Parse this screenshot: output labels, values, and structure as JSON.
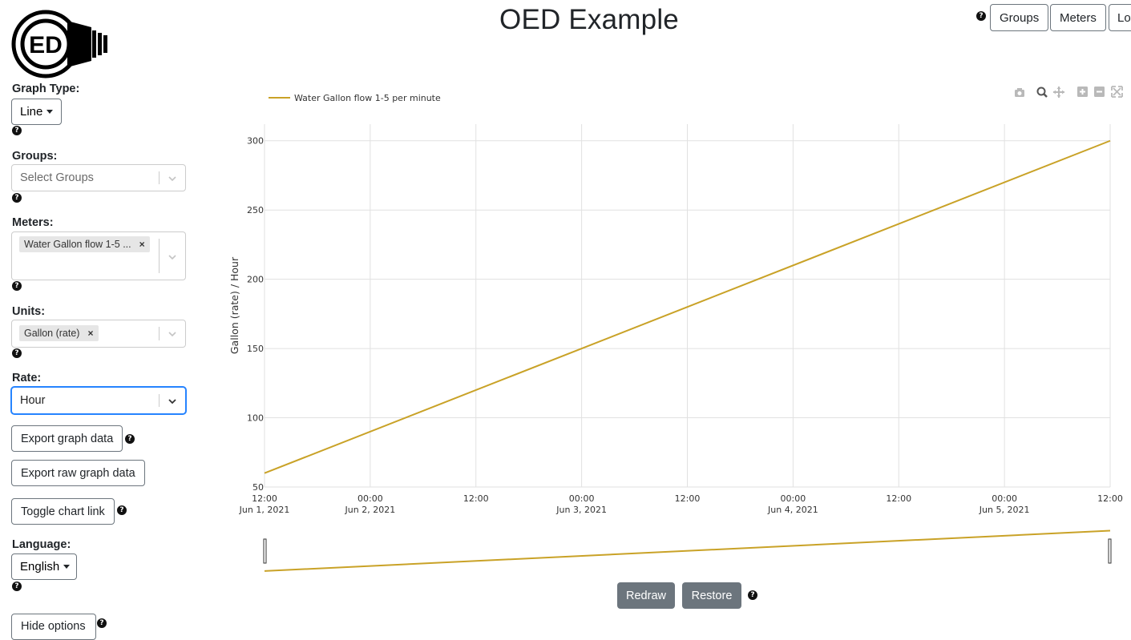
{
  "header": {
    "title": "OED Example",
    "logo_text": "ED",
    "nav": {
      "groups_label": "Groups",
      "meters_label": "Meters",
      "login_label": "Lo"
    }
  },
  "sidebar": {
    "graph_type": {
      "label": "Graph Type:",
      "value": "Line"
    },
    "groups": {
      "label": "Groups:",
      "placeholder": "Select Groups"
    },
    "meters": {
      "label": "Meters:",
      "selected": [
        "Water Gallon flow 1-5 ..."
      ]
    },
    "units": {
      "label": "Units:",
      "selected": [
        "Gallon (rate)"
      ]
    },
    "rate": {
      "label": "Rate:",
      "value": "Hour"
    },
    "export_graph_label": "Export graph data",
    "export_raw_label": "Export raw graph data",
    "toggle_chart_link_label": "Toggle chart link",
    "language": {
      "label": "Language:",
      "value": "English"
    },
    "hide_options_label": "Hide options"
  },
  "controls": {
    "redraw_label": "Redraw",
    "restore_label": "Restore"
  },
  "icons": [
    "camera-icon",
    "zoom-icon",
    "pan-icon",
    "zoom-in-icon",
    "zoom-out-icon",
    "autoscale-icon",
    "help-icon",
    "chevron-down-icon",
    "caret-down-icon"
  ],
  "colors": {
    "series": "#c9a227",
    "accent_focus": "#86b7fe",
    "secondary_button": "#6c757d"
  },
  "chart_data": {
    "type": "line",
    "title": "",
    "xlabel": "",
    "ylabel": "Gallon (rate) / Hour",
    "grid": true,
    "legend_position": "top-left",
    "series": [
      {
        "name": "Water Gallon flow 1-5 per minute",
        "color": "#c9a227",
        "x": [
          "2021-06-01 12:00",
          "2021-06-05 12:00"
        ],
        "y": [
          60,
          300
        ]
      }
    ],
    "xlim": [
      "2021-06-01 12:00",
      "2021-06-05 12:00"
    ],
    "ylim": [
      50,
      312
    ],
    "yticks": [
      50,
      100,
      150,
      200,
      250,
      300
    ],
    "xtick_labels": [
      [
        "12:00",
        "Jun 1, 2021"
      ],
      [
        "00:00",
        "Jun 2, 2021"
      ],
      [
        "12:00",
        ""
      ],
      [
        "00:00",
        "Jun 3, 2021"
      ],
      [
        "12:00",
        ""
      ],
      [
        "00:00",
        "Jun 4, 2021"
      ],
      [
        "12:00",
        ""
      ],
      [
        "00:00",
        "Jun 5, 2021"
      ],
      [
        "12:00",
        ""
      ]
    ]
  }
}
